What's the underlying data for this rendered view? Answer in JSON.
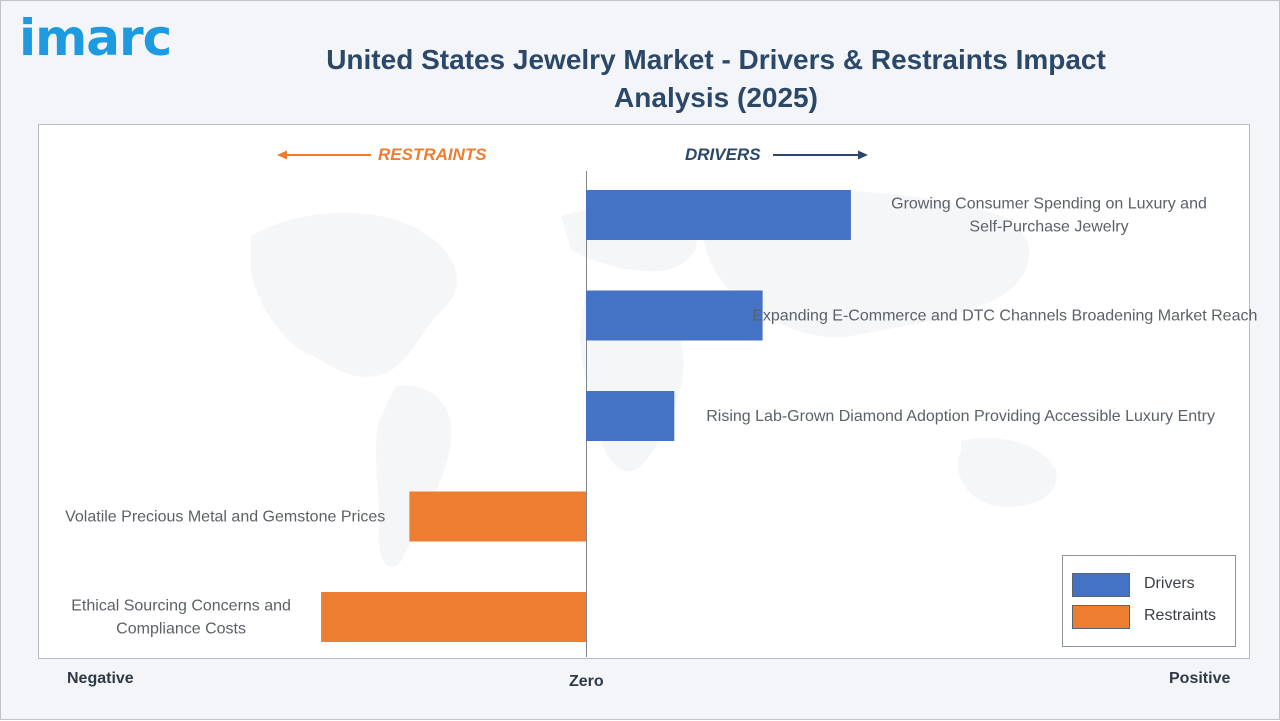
{
  "header": {
    "logo_text": "imarc",
    "title": "United States Jewelry Market - Drivers & Restraints Impact Analysis (2025)"
  },
  "direction_labels": {
    "restraints": "RESTRAINTS",
    "drivers": "DRIVERS"
  },
  "axis_labels": {
    "negative": "Negative",
    "zero": "Zero",
    "positive": "Positive"
  },
  "legend": {
    "placement": "bottom-right",
    "items": [
      {
        "label": "Drivers",
        "color": "#4472c4"
      },
      {
        "label": "Restraints",
        "color": "#ed7d31"
      }
    ]
  },
  "chart_data": {
    "type": "bar",
    "orientation": "horizontal",
    "title": "United States Jewelry Market - Drivers & Restraints Impact Analysis (2025)",
    "xlim": [
      -3,
      3.5
    ],
    "colors": {
      "driver": "#4472c4",
      "restraint": "#ed7d31"
    },
    "items": [
      {
        "label": "Growing Consumer Spending on Luxury and Self-Purchase Jewelry",
        "value": 3,
        "kind": "driver"
      },
      {
        "label": "Expanding E-Commerce and DTC Channels Broadening Market Reach",
        "value": 2,
        "kind": "driver"
      },
      {
        "label": "Rising Lab-Grown Diamond Adoption Providing Accessible Luxury Entry",
        "value": 1,
        "kind": "driver"
      },
      {
        "label": "Volatile Precious Metal and Gemstone Prices",
        "value": -2,
        "kind": "restraint"
      },
      {
        "label": "Ethical Sourcing Concerns and Compliance Costs",
        "value": -3,
        "kind": "restraint"
      }
    ]
  }
}
